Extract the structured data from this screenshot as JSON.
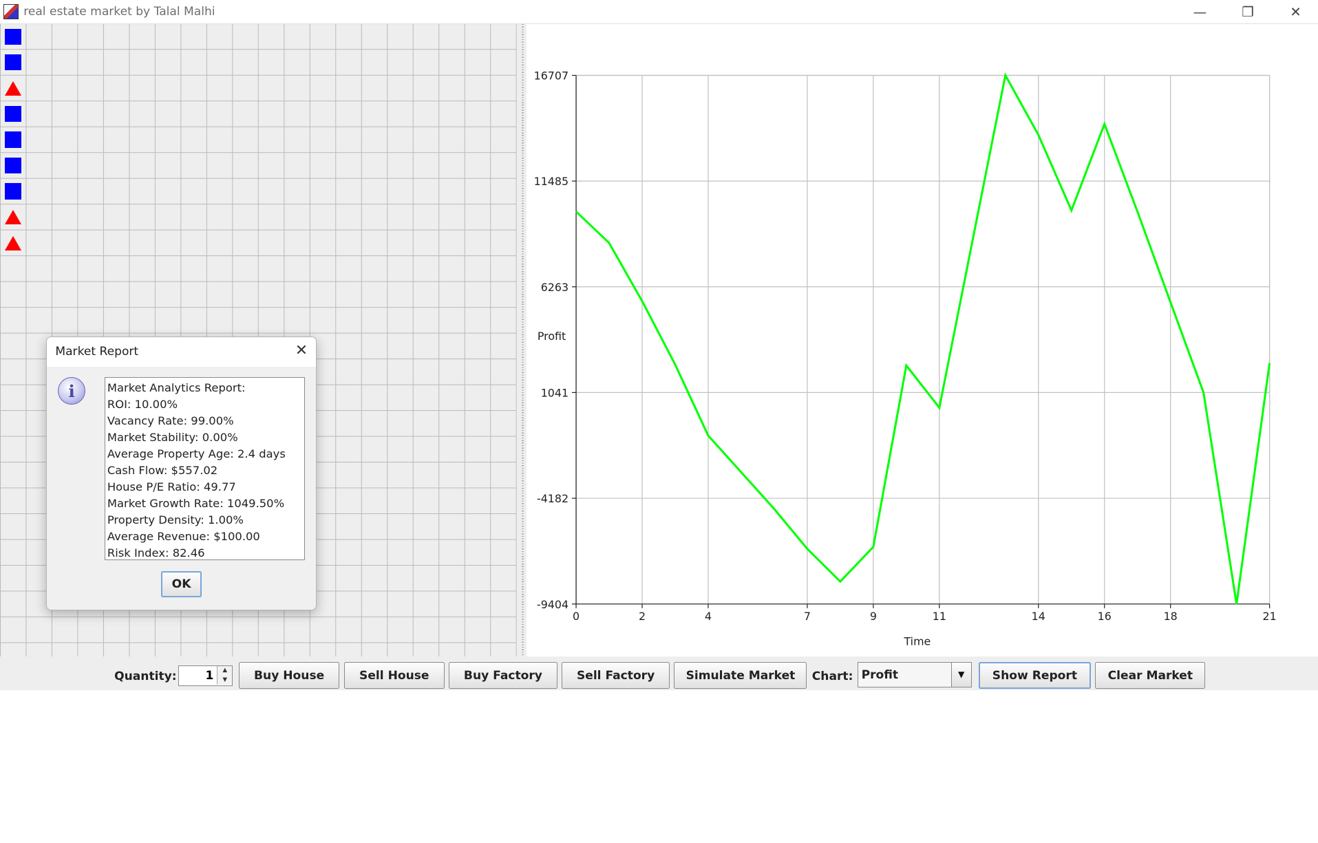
{
  "window": {
    "title": "real estate market by Talal Malhi",
    "minimize_glyph": "—",
    "restore_glyph": "❐",
    "close_glyph": "✕"
  },
  "grid": {
    "properties": [
      {
        "type": "house"
      },
      {
        "type": "house"
      },
      {
        "type": "factory"
      },
      {
        "type": "house"
      },
      {
        "type": "house"
      },
      {
        "type": "house"
      },
      {
        "type": "house"
      },
      {
        "type": "factory"
      },
      {
        "type": "factory"
      }
    ],
    "colors": {
      "house": "#0000ff",
      "factory": "#ff0000"
    }
  },
  "dialog": {
    "title": "Market Report",
    "close_glyph": "✕",
    "icon_glyph": "i",
    "lines": [
      "Market Analytics Report:",
      "ROI: 10.00%",
      "Vacancy Rate: 99.00%",
      "Market Stability: 0.00%",
      "Average Property Age: 2.4 days",
      "Cash Flow: $557.02",
      "House P/E Ratio: 49.77",
      "Market Growth Rate: 1049.50%",
      "Property Density: 1.00%",
      "Average Revenue: $100.00",
      "Risk Index: 82.46"
    ],
    "ok_label": "OK"
  },
  "toolbar": {
    "quantity_label": "Quantity:",
    "quantity_value": "1",
    "spinner_up": "▲",
    "spinner_down": "▼",
    "buy_house": "Buy House",
    "sell_house": "Sell House",
    "buy_factory": "Buy Factory",
    "sell_factory": "Sell Factory",
    "simulate_market": "Simulate Market",
    "chart_label": "Chart:",
    "chart_selected": "Profit",
    "combo_arrow": "▼",
    "show_report": "Show Report",
    "clear_market": "Clear Market"
  },
  "chart_data": {
    "type": "line",
    "xlabel": "Time",
    "ylabel": "Profit",
    "xlim": [
      0,
      21
    ],
    "ylim": [
      -9404,
      16707
    ],
    "x_ticks": [
      0,
      2,
      4,
      7,
      9,
      11,
      14,
      16,
      18,
      21
    ],
    "y_ticks": [
      16707,
      11485,
      6263,
      1041,
      -4182,
      -9404
    ],
    "series": [
      {
        "color": "#00ff00",
        "x": [
          0,
          1,
          2,
          3,
          4,
          5,
          6,
          7,
          8,
          9,
          10,
          11,
          12,
          13,
          14,
          15,
          16,
          17,
          18,
          19,
          20,
          21
        ],
        "y": [
          9979,
          8428,
          5555,
          2423,
          -1086,
          -2898,
          -4710,
          -6679,
          -8294,
          -6582,
          2376,
          291,
          8509,
          16707,
          13766,
          10037,
          14302,
          9972,
          5500,
          1041,
          -9404,
          2492
        ]
      }
    ]
  }
}
